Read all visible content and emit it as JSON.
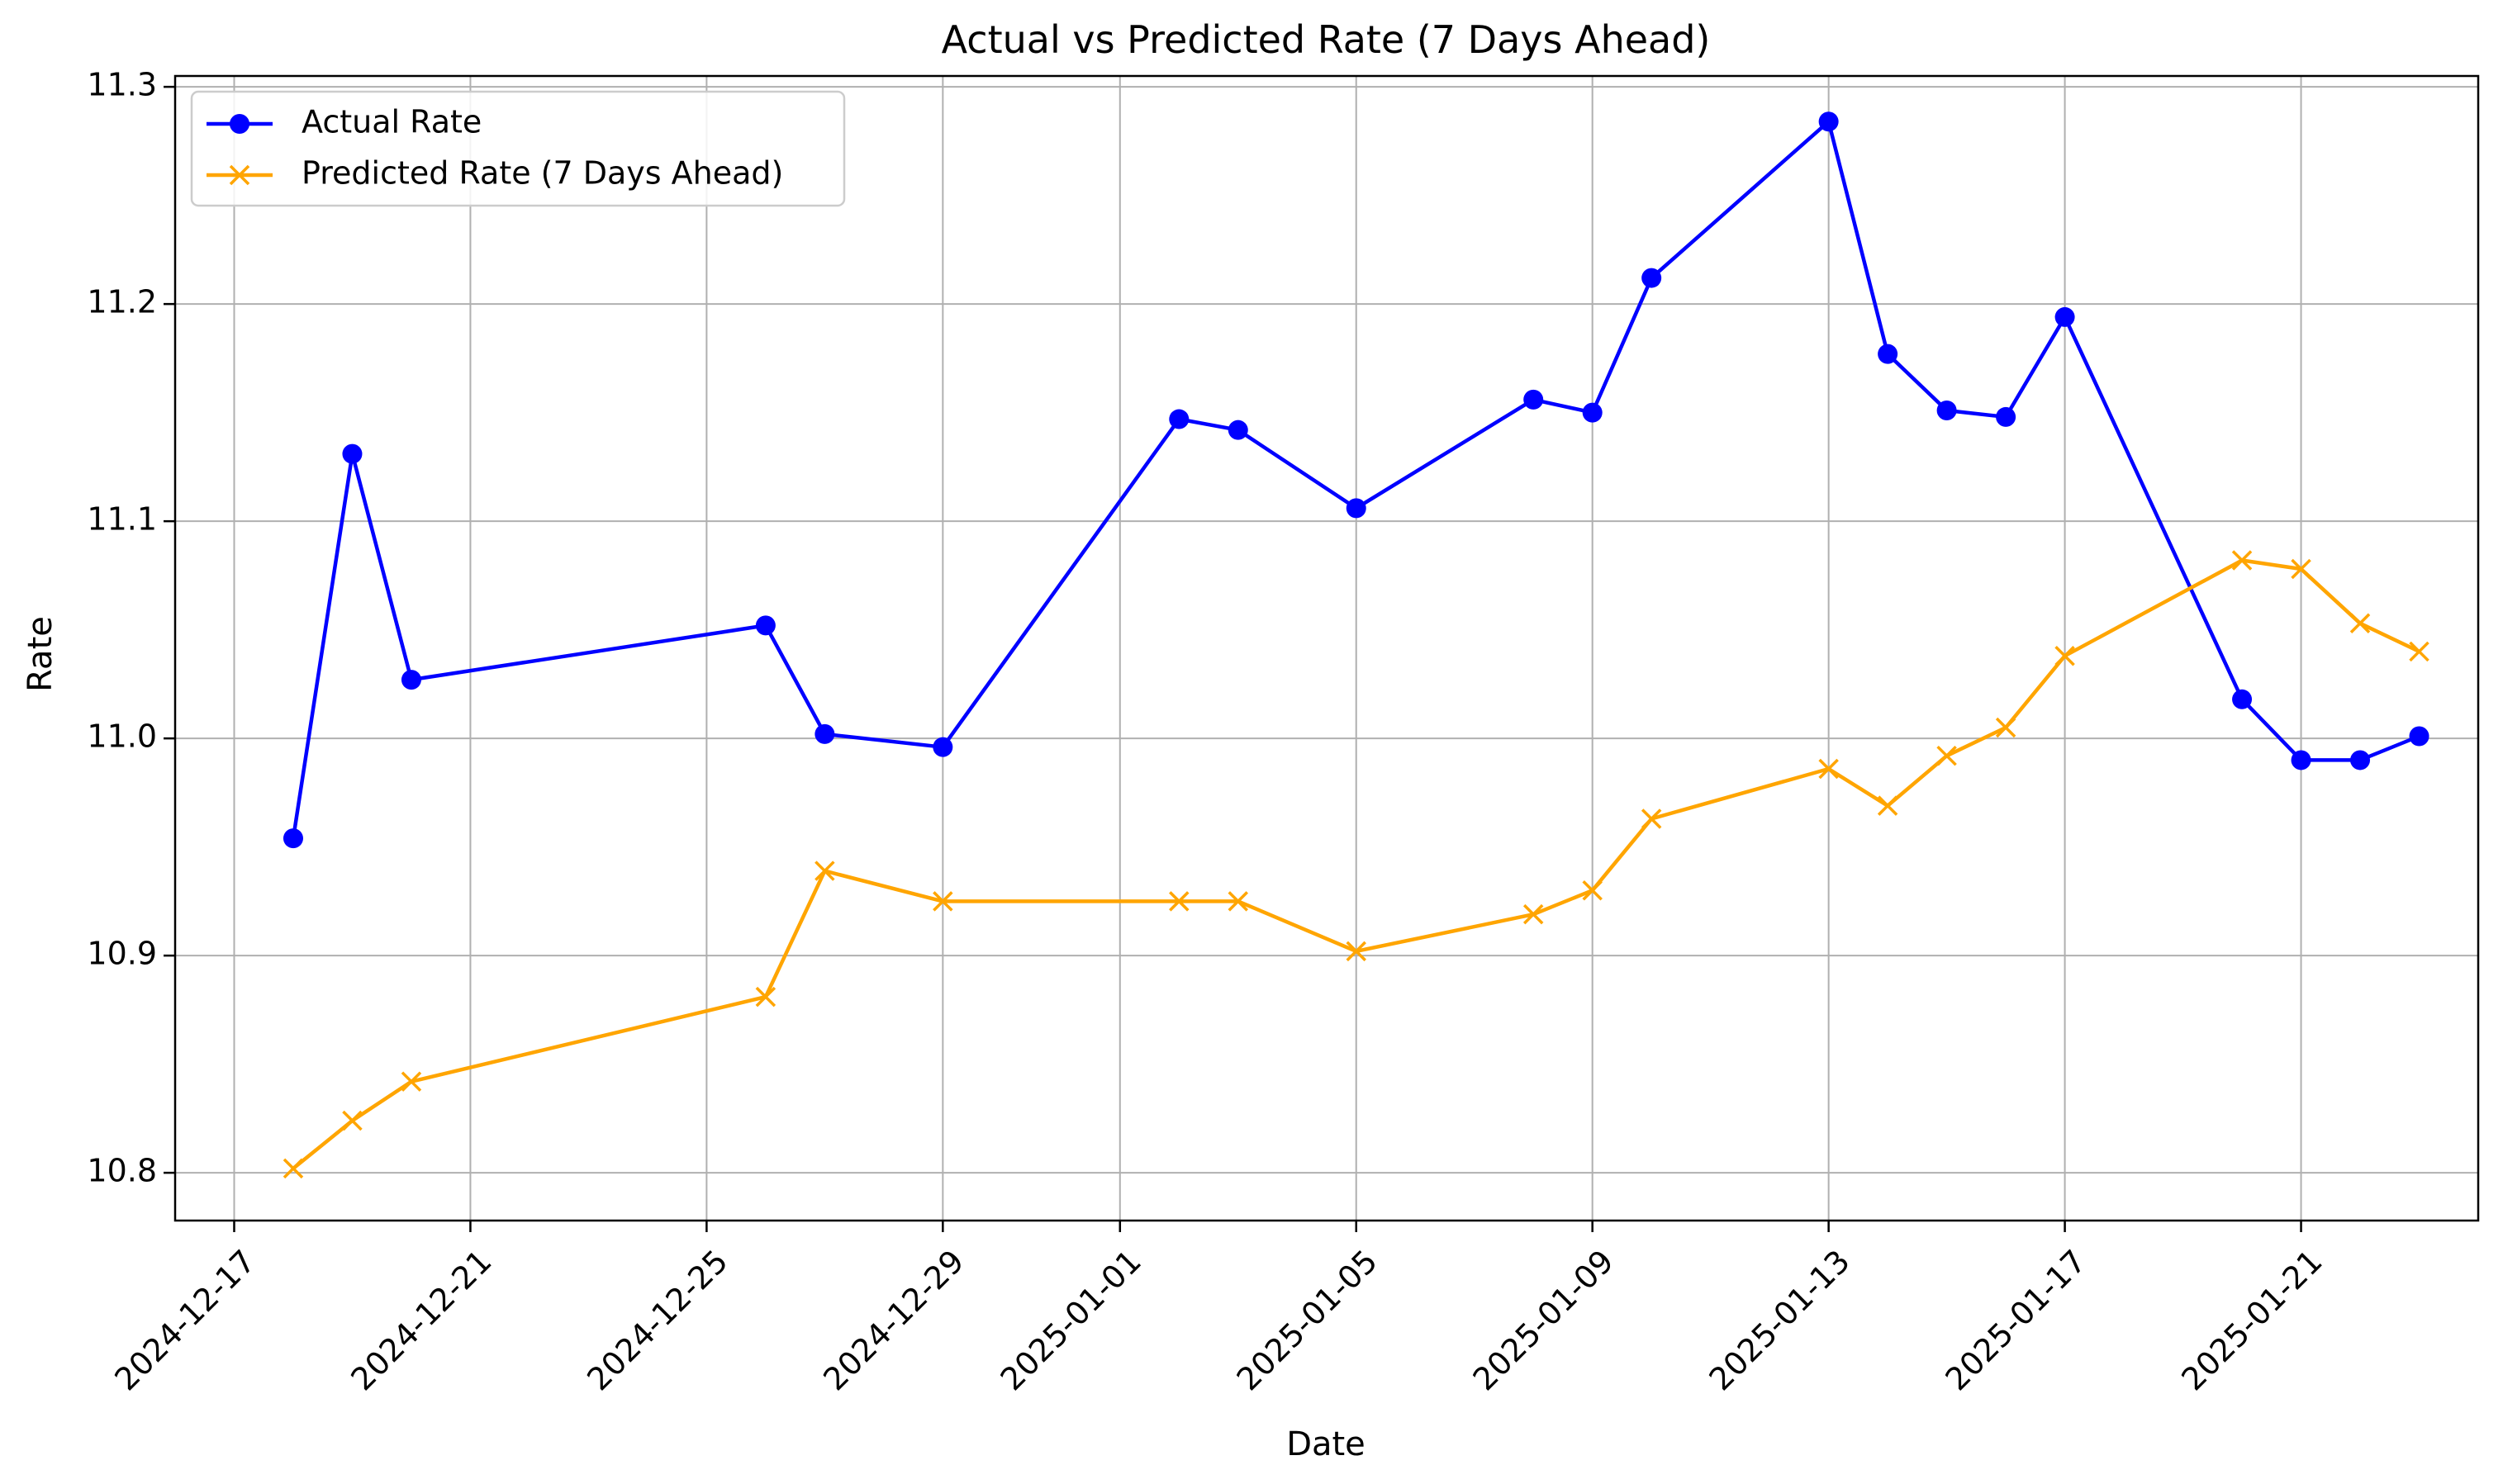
{
  "chart_data": {
    "type": "line",
    "title": "Actual vs Predicted Rate (7 Days Ahead)",
    "xlabel": "Date",
    "ylabel": "Rate",
    "grid": true,
    "legend_position": "top-left",
    "x_axis_type": "date",
    "xlim": [
      "2024-12-16",
      "2025-01-24"
    ],
    "ylim": [
      10.778,
      11.305
    ],
    "x_ticks": [
      "2024-12-17",
      "2024-12-21",
      "2024-12-25",
      "2024-12-29",
      "2025-01-01",
      "2025-01-05",
      "2025-01-09",
      "2025-01-13",
      "2025-01-17",
      "2025-01-21"
    ],
    "y_ticks": [
      "10.8",
      "10.9",
      "11.0",
      "11.1",
      "11.2",
      "11.3"
    ],
    "x": [
      "2024-12-18",
      "2024-12-19",
      "2024-12-20",
      "2024-12-26",
      "2024-12-27",
      "2024-12-29",
      "2025-01-02",
      "2025-01-03",
      "2025-01-05",
      "2025-01-08",
      "2025-01-09",
      "2025-01-10",
      "2025-01-13",
      "2025-01-14",
      "2025-01-15",
      "2025-01-16",
      "2025-01-17",
      "2025-01-20",
      "2025-01-21",
      "2025-01-22",
      "2025-01-23"
    ],
    "series": [
      {
        "name": "Actual Rate",
        "color": "#0000ff",
        "marker": "circle",
        "values": [
          10.954,
          11.131,
          11.027,
          11.052,
          11.002,
          10.996,
          11.147,
          11.142,
          11.106,
          11.156,
          11.15,
          11.212,
          11.284,
          11.177,
          11.151,
          11.148,
          11.194,
          11.018,
          10.99,
          10.99,
          11.001
        ]
      },
      {
        "name": "Predicted Rate (7 Days Ahead)",
        "color": "#ffa500",
        "marker": "x",
        "values": [
          10.802,
          10.824,
          10.842,
          10.881,
          10.939,
          10.925,
          10.925,
          10.925,
          10.902,
          10.919,
          10.93,
          10.963,
          10.986,
          10.969,
          10.992,
          11.005,
          11.038,
          11.082,
          11.078,
          11.053,
          11.04
        ]
      }
    ]
  }
}
